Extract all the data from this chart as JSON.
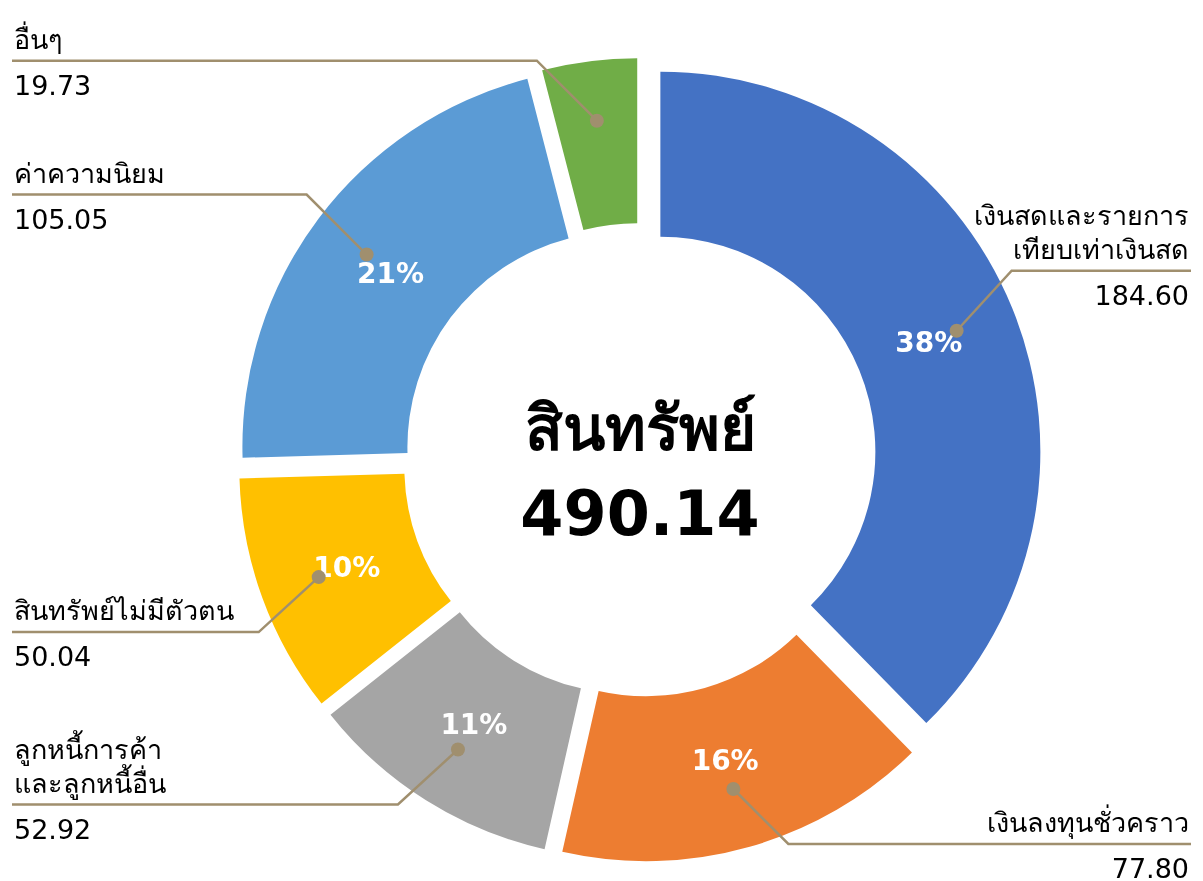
{
  "chart_data": {
    "type": "donut",
    "title": "สินทรัพย์",
    "annotations": [
      "490.14",
      {
        "text": "38%",
        "x": "เงินสดและรายการ\nเทียบเท่าเงินสด"
      },
      {
        "text": "16%",
        "x": "เงินลงทุนชั่วคราว"
      },
      {
        "text": "11%",
        "x": "ลูกหนี้การค้า\nและลูกหนี้อื่น"
      },
      {
        "text": "10%",
        "x": "สินทรัพย์ไม่มีตัวตน"
      },
      {
        "text": "21%",
        "x": "ค่าความนิยม"
      }
    ],
    "categories": [
      "เงินสดและรายการ\nเทียบเท่าเงินสด",
      "เงินลงทุนชั่วคราว",
      "ลูกหนี้การค้า\nและลูกหนี้อื่น",
      "สินทรัพย์ไม่มีตัวตน",
      "ค่าความนิยม",
      "อื่นๆ"
    ],
    "values": [
      184.6,
      77.8,
      52.92,
      50.04,
      105.05,
      19.73
    ],
    "colors": [
      "#4472c4",
      "#ed7d31",
      "#a5a5a5",
      "#ffc000",
      "#5b9bd5",
      "#70ad47"
    ],
    "value_labels": [
      "184.60",
      "77.80",
      "52.92",
      "50.04",
      "105.05",
      "19.73"
    ]
  }
}
